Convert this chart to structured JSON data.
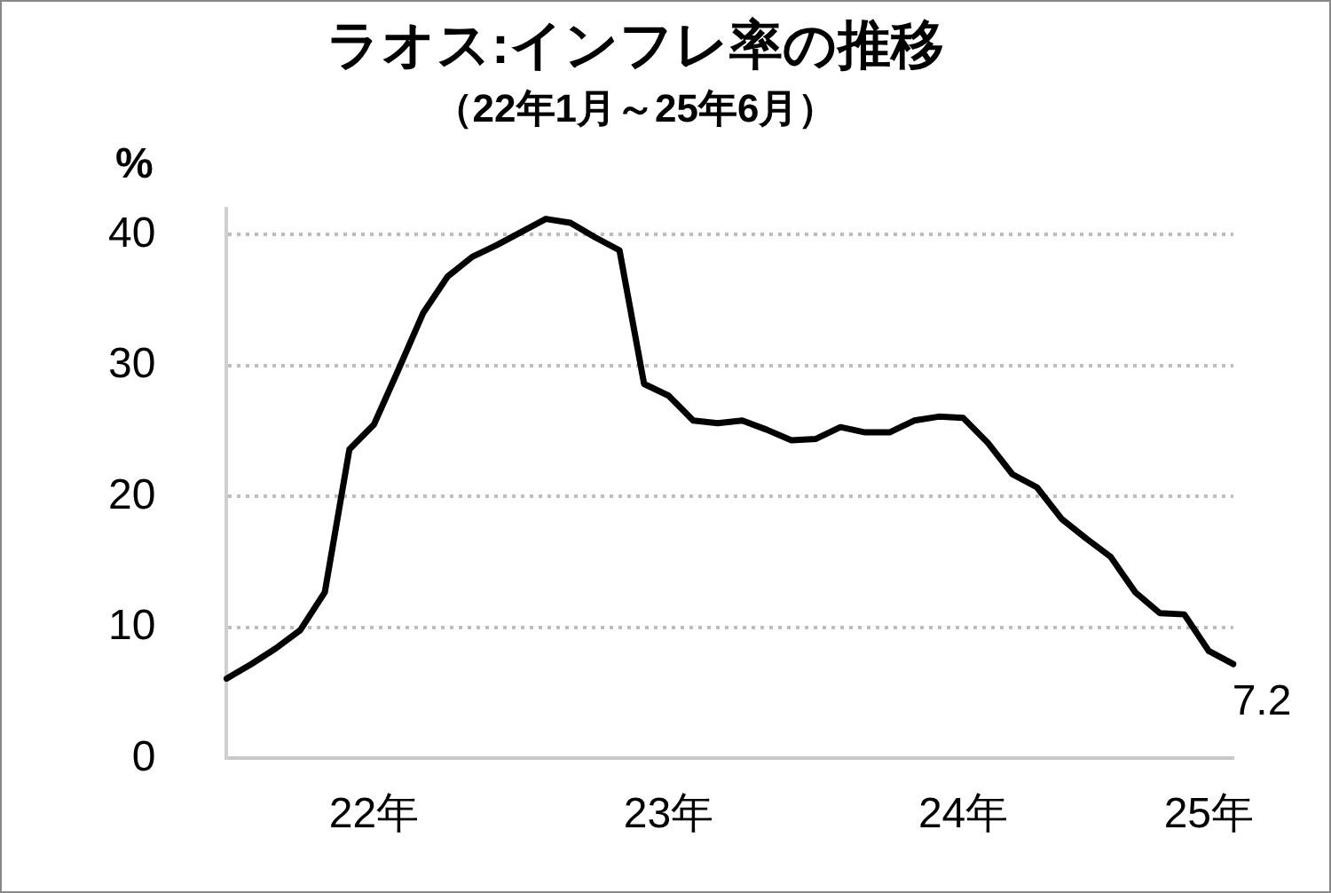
{
  "chart_data": {
    "type": "line",
    "title": "ラオス:インフレ率の推移",
    "subtitle": "（22年1月～25年6月）",
    "ylabel": "%",
    "categories": [
      null,
      null,
      null,
      null,
      null,
      null,
      "22年",
      null,
      null,
      null,
      null,
      null,
      null,
      null,
      null,
      null,
      null,
      null,
      "23年",
      null,
      null,
      null,
      null,
      null,
      null,
      null,
      null,
      null,
      null,
      null,
      "24年",
      null,
      null,
      null,
      null,
      null,
      null,
      null,
      null,
      null,
      "25年",
      null
    ],
    "series": [
      {
        "color": "#000000",
        "values": [
          6.1,
          7.2,
          8.4,
          9.8,
          12.7,
          23.6,
          25.5,
          29.7,
          34.0,
          36.8,
          38.3,
          39.2,
          40.2,
          41.2,
          40.9,
          39.8,
          38.8,
          28.6,
          27.7,
          25.8,
          25.6,
          25.8,
          25.1,
          24.3,
          24.4,
          25.3,
          24.9,
          24.9,
          25.8,
          26.1,
          26.0,
          24.1,
          21.7,
          20.7,
          18.3,
          16.8,
          15.4,
          12.7,
          11.1,
          11.0,
          8.2,
          7.2
        ],
        "value_labels": [
          null,
          null,
          null,
          null,
          null,
          null,
          null,
          null,
          null,
          null,
          null,
          null,
          null,
          null,
          null,
          null,
          null,
          null,
          null,
          null,
          null,
          null,
          null,
          null,
          null,
          null,
          null,
          null,
          null,
          null,
          null,
          null,
          null,
          null,
          null,
          null,
          null,
          null,
          null,
          null,
          null,
          "7.2"
        ]
      }
    ],
    "ylim": [
      0,
      42
    ],
    "yticks": [
      0,
      10,
      20,
      30,
      40
    ],
    "grid": "y",
    "legend": false,
    "marker": "none",
    "line_style": "solid"
  }
}
